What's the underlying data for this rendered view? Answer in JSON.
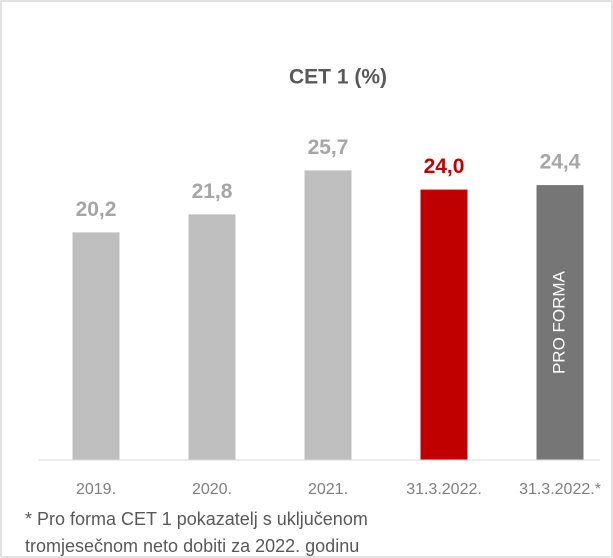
{
  "chart_data": {
    "type": "bar",
    "title": "CET 1 (%)",
    "categories": [
      "2019.",
      "2020.",
      "2021.",
      "31.3.2022.",
      "31.3.2022.*"
    ],
    "values": [
      20.2,
      21.8,
      25.7,
      24.0,
      24.4
    ],
    "value_labels": [
      "20,2",
      "21,8",
      "25,7",
      "24,0",
      "24,4"
    ],
    "colors": [
      "#bfbfbf",
      "#bfbfbf",
      "#bfbfbf",
      "#c00000",
      "#767676"
    ],
    "label_colors": [
      "#a6a6a6",
      "#a6a6a6",
      "#a6a6a6",
      "#c00000",
      "#a6a6a6"
    ],
    "ylim": [
      0,
      30
    ],
    "annotations": [
      {
        "text": "PRO FORMA",
        "index": 4
      }
    ],
    "footnote": [
      "* Pro forma CET 1 pokazatelj s uključenom",
      "tromjesečnom neto dobiti za 2022. godinu"
    ]
  }
}
